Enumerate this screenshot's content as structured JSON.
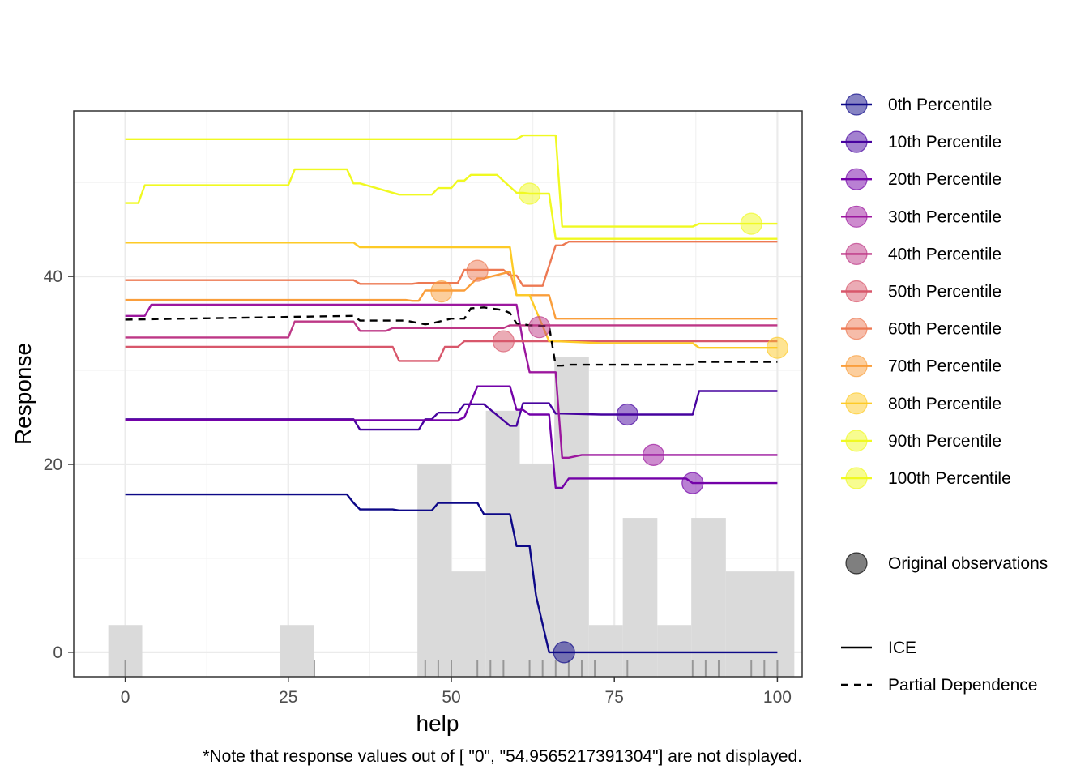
{
  "chart_data": {
    "type": "line",
    "title": "",
    "xlabel": "help",
    "ylabel": "Response",
    "xlim": [
      -7.9,
      103.8
    ],
    "ylim": [
      -2.6,
      57.6
    ],
    "x_ticks": [
      0,
      25,
      50,
      75,
      100
    ],
    "x_tick_labels": [
      "0",
      "25",
      "50",
      "75",
      "100"
    ],
    "y_ticks": [
      0,
      20,
      40
    ],
    "y_tick_labels": [
      "0",
      "20",
      "40"
    ],
    "grid": true,
    "legend_position": "right",
    "note": "*Note that response values out of [ \"0\",  \"54.9565217391304\"] are not displayed.",
    "histogram": {
      "color": "#dadada",
      "bins": [
        {
          "x0": -2.6,
          "x1": 2.6,
          "h": 2.9
        },
        {
          "x0": 23.7,
          "x1": 29.0,
          "h": 2.9
        },
        {
          "x0": 44.8,
          "x1": 50.0,
          "h": 20.0
        },
        {
          "x0": 50.0,
          "x1": 55.3,
          "h": 8.6
        },
        {
          "x0": 55.3,
          "x1": 60.5,
          "h": 25.7
        },
        {
          "x0": 60.5,
          "x1": 65.8,
          "h": 20.0
        },
        {
          "x0": 65.8,
          "x1": 71.1,
          "h": 31.4
        },
        {
          "x0": 71.1,
          "x1": 76.3,
          "h": 2.9
        },
        {
          "x0": 76.3,
          "x1": 81.6,
          "h": 14.3
        },
        {
          "x0": 81.6,
          "x1": 86.8,
          "h": 2.9
        },
        {
          "x0": 86.8,
          "x1": 92.1,
          "h": 14.3
        },
        {
          "x0": 92.1,
          "x1": 97.4,
          "h": 8.6
        },
        {
          "x0": 97.4,
          "x1": 102.6,
          "h": 8.6
        }
      ]
    },
    "rug": [
      0,
      29,
      46,
      48,
      50,
      54,
      56,
      58,
      62,
      64,
      66,
      68,
      70,
      72,
      77,
      87,
      89,
      91,
      96,
      98,
      100
    ],
    "series": [
      {
        "name": "0th Percentile",
        "color": "#0d0887",
        "x": [
          0,
          34,
          35,
          36,
          41,
          42,
          47,
          48,
          51,
          52,
          54,
          55,
          59,
          60,
          62,
          63,
          65,
          66,
          68,
          100
        ],
        "y": [
          16.8,
          16.8,
          15.9,
          15.2,
          15.2,
          15.1,
          15.1,
          15.9,
          15.9,
          15.9,
          15.9,
          14.7,
          14.7,
          11.3,
          11.3,
          6.0,
          0,
          0,
          0,
          0
        ],
        "point": [
          67.3,
          0
        ]
      },
      {
        "name": "10th Percentile",
        "color": "#47039f",
        "x": [
          0,
          35,
          36,
          45,
          46,
          47,
          48,
          51,
          52,
          54,
          55,
          59,
          60,
          61,
          62,
          65,
          66,
          67,
          73,
          80,
          86,
          87,
          88,
          100
        ],
        "y": [
          24.8,
          24.8,
          23.7,
          23.7,
          24.8,
          24.8,
          25.5,
          25.5,
          26.4,
          26.4,
          26.4,
          24.1,
          24.1,
          26.5,
          26.5,
          26.5,
          25.4,
          25.4,
          25.3,
          25.3,
          25.3,
          25.3,
          27.8,
          27.8
        ],
        "point": [
          77,
          25.3
        ]
      },
      {
        "name": "20th Percentile",
        "color": "#7301a8",
        "x": [
          0,
          35,
          36,
          44,
          45,
          46,
          47,
          48,
          51,
          52,
          54,
          55,
          59,
          60,
          61,
          62,
          65,
          66,
          67,
          68,
          69,
          79,
          86,
          87,
          88,
          100
        ],
        "y": [
          24.7,
          24.7,
          24.7,
          24.7,
          24.7,
          24.7,
          24.7,
          24.7,
          24.7,
          25.0,
          28.3,
          28.3,
          28.3,
          25.8,
          25.8,
          25.3,
          25.3,
          17.5,
          17.5,
          18.5,
          18.5,
          18.5,
          18.5,
          18.0,
          18.0,
          18.0
        ],
        "point": [
          87,
          18.0
        ]
      },
      {
        "name": "30th Percentile",
        "color": "#9c179e",
        "x": [
          0,
          3,
          4,
          60,
          61,
          62,
          63,
          66,
          67,
          68,
          70,
          100
        ],
        "y": [
          35.8,
          35.8,
          37.0,
          37.0,
          33.0,
          29.8,
          29.8,
          29.8,
          20.7,
          20.7,
          21.0,
          21.0
        ],
        "point": [
          81,
          21.0
        ]
      },
      {
        "name": "40th Percentile",
        "color": "#bd3786",
        "x": [
          0,
          25,
          26,
          35,
          36,
          40,
          41,
          58,
          59,
          60,
          62,
          100
        ],
        "y": [
          33.5,
          33.5,
          35.2,
          35.2,
          34.2,
          34.2,
          34.5,
          34.5,
          34.8,
          34.8,
          34.8,
          34.8
        ],
        "point": [
          63.5,
          34.6
        ]
      },
      {
        "name": "50th Percentile",
        "color": "#d8576b",
        "x": [
          0,
          41,
          42,
          45,
          46,
          48,
          49,
          51,
          52,
          56,
          57,
          100
        ],
        "y": [
          32.5,
          32.5,
          31.0,
          31.0,
          31.0,
          31.0,
          32.5,
          32.5,
          33.1,
          33.1,
          33.1,
          33.1
        ],
        "point": [
          58,
          33.1
        ]
      },
      {
        "name": "60th Percentile",
        "color": "#ed7953",
        "x": [
          0,
          35,
          36,
          44,
          45,
          51,
          52,
          58,
          59,
          60,
          61,
          63,
          64,
          66,
          67,
          68,
          70,
          100
        ],
        "y": [
          39.6,
          39.6,
          39.2,
          39.2,
          39.3,
          39.3,
          40.7,
          40.7,
          40.1,
          40.1,
          39.0,
          39.0,
          39.0,
          43.3,
          43.3,
          43.7,
          43.7,
          43.7
        ],
        "point": [
          54,
          40.6
        ]
      },
      {
        "name": "70th Percentile",
        "color": "#fa9e3b",
        "x": [
          0,
          43,
          44,
          45,
          46,
          51,
          52,
          54,
          55,
          59,
          60,
          62,
          63,
          65,
          66,
          73,
          100
        ],
        "y": [
          37.5,
          37.5,
          37.4,
          37.4,
          38.5,
          38.5,
          38.5,
          39.8,
          39.8,
          40.5,
          38.0,
          38.0,
          38.0,
          38.0,
          35.5,
          35.5,
          35.5
        ],
        "point": [
          48.5,
          38.4
        ]
      },
      {
        "name": "80th Percentile",
        "color": "#fdca26",
        "x": [
          0,
          35,
          36,
          58,
          59,
          60,
          61,
          62,
          65,
          66,
          73,
          87,
          88,
          100
        ],
        "y": [
          43.6,
          43.6,
          43.1,
          43.1,
          43.1,
          38.0,
          38.0,
          38.0,
          33.1,
          33.1,
          32.9,
          32.9,
          32.4,
          32.4
        ],
        "point": [
          100,
          32.4
        ]
      },
      {
        "name": "90th Percentile",
        "color": "#f0f921",
        "x": [
          0,
          2,
          3,
          25,
          26,
          34,
          35,
          36,
          42,
          43,
          47,
          48,
          50,
          51,
          52,
          53,
          56,
          57,
          60,
          61,
          62,
          64,
          65,
          66,
          100
        ],
        "y": [
          47.8,
          47.8,
          49.7,
          49.7,
          51.4,
          51.4,
          49.9,
          49.9,
          48.7,
          48.7,
          48.7,
          49.4,
          49.4,
          50.2,
          50.2,
          50.8,
          50.8,
          50.8,
          48.9,
          48.9,
          48.8,
          48.8,
          48.8,
          44.0,
          44.0
        ],
        "point": [
          62,
          48.8
        ]
      },
      {
        "name": "100th Percentile",
        "color": "#f0f921",
        "x": [
          0,
          60,
          61,
          66,
          67,
          87,
          88,
          100
        ],
        "y": [
          54.6,
          54.6,
          55.0,
          55.0,
          45.3,
          45.3,
          45.6,
          45.6
        ],
        "point": [
          96,
          45.6
        ]
      }
    ],
    "partial_dependence": {
      "name": "Partial Dependence",
      "color": "#000000",
      "x": [
        0,
        35,
        36,
        42,
        43,
        46,
        47,
        50,
        51,
        52,
        53,
        55,
        57,
        58,
        59,
        60,
        61,
        62,
        65,
        66,
        67,
        68,
        70,
        86,
        87,
        88,
        100
      ],
      "y": [
        35.4,
        35.8,
        35.3,
        35.3,
        35.3,
        34.9,
        35.0,
        35.5,
        35.5,
        35.5,
        36.6,
        36.7,
        36.5,
        36.4,
        36.1,
        35.0,
        34.9,
        34.8,
        34.7,
        30.5,
        30.5,
        30.6,
        30.6,
        30.6,
        30.6,
        30.9,
        30.9
      ]
    },
    "legend": {
      "percentiles": [
        "0th Percentile",
        "10th Percentile",
        "20th Percentile",
        "30th Percentile",
        "40th Percentile",
        "50th Percentile",
        "60th Percentile",
        "70th Percentile",
        "80th Percentile",
        "90th Percentile",
        "100th Percentile"
      ],
      "observations_label": "Original observations",
      "ice_label": "ICE",
      "pd_label": "Partial Dependence"
    }
  }
}
